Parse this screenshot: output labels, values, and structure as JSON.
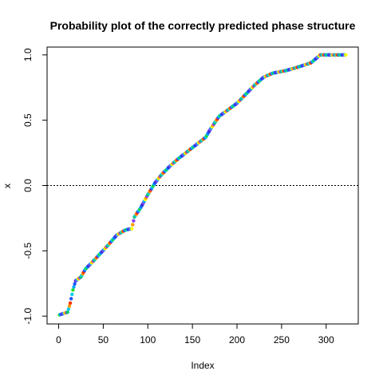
{
  "chart_data": {
    "type": "scatter",
    "title": "Probability plot of the correctly predicted phase structure",
    "xlabel": "Index",
    "ylabel": "x",
    "xlim": [
      -13,
      336
    ],
    "ylim": [
      -1.06,
      1.06
    ],
    "x_ticks": [
      0,
      50,
      100,
      150,
      200,
      250,
      300
    ],
    "x_tick_labels": [
      "0",
      "50",
      "100",
      "150",
      "200",
      "250",
      "300"
    ],
    "y_ticks": [
      -1.0,
      -0.5,
      0.0,
      0.5,
      1.0
    ],
    "y_tick_labels": [
      "-1.0",
      "-0.5",
      "0.0",
      "0.5",
      "1.0"
    ],
    "reference_line": {
      "y": 0,
      "style": "dotted",
      "color": "#000000"
    },
    "grid": false,
    "n_points": 322,
    "curve_knots": [
      [
        1,
        -0.99
      ],
      [
        10,
        -0.97
      ],
      [
        13,
        -0.9
      ],
      [
        16,
        -0.8
      ],
      [
        19,
        -0.73
      ],
      [
        25,
        -0.7
      ],
      [
        30,
        -0.64
      ],
      [
        40,
        -0.57
      ],
      [
        55,
        -0.46
      ],
      [
        65,
        -0.38
      ],
      [
        75,
        -0.34
      ],
      [
        82,
        -0.33
      ],
      [
        85,
        -0.24
      ],
      [
        92,
        -0.17
      ],
      [
        100,
        -0.07
      ],
      [
        108,
        0.02
      ],
      [
        115,
        0.08
      ],
      [
        125,
        0.15
      ],
      [
        135,
        0.21
      ],
      [
        150,
        0.29
      ],
      [
        165,
        0.37
      ],
      [
        170,
        0.43
      ],
      [
        180,
        0.53
      ],
      [
        190,
        0.58
      ],
      [
        200,
        0.63
      ],
      [
        210,
        0.7
      ],
      [
        220,
        0.77
      ],
      [
        230,
        0.83
      ],
      [
        240,
        0.86
      ],
      [
        255,
        0.88
      ],
      [
        270,
        0.91
      ],
      [
        283,
        0.94
      ],
      [
        290,
        0.98
      ],
      [
        293,
        1.0
      ],
      [
        322,
        1.0
      ]
    ],
    "color_palette": [
      "#00ccee",
      "#ffff00",
      "#2255ff",
      "#00cc66",
      "#00aaff",
      "#ff3300",
      "#8844ff",
      "#22dd22",
      "#ff9900",
      "#3333cc"
    ],
    "marker": "filled-circle"
  }
}
